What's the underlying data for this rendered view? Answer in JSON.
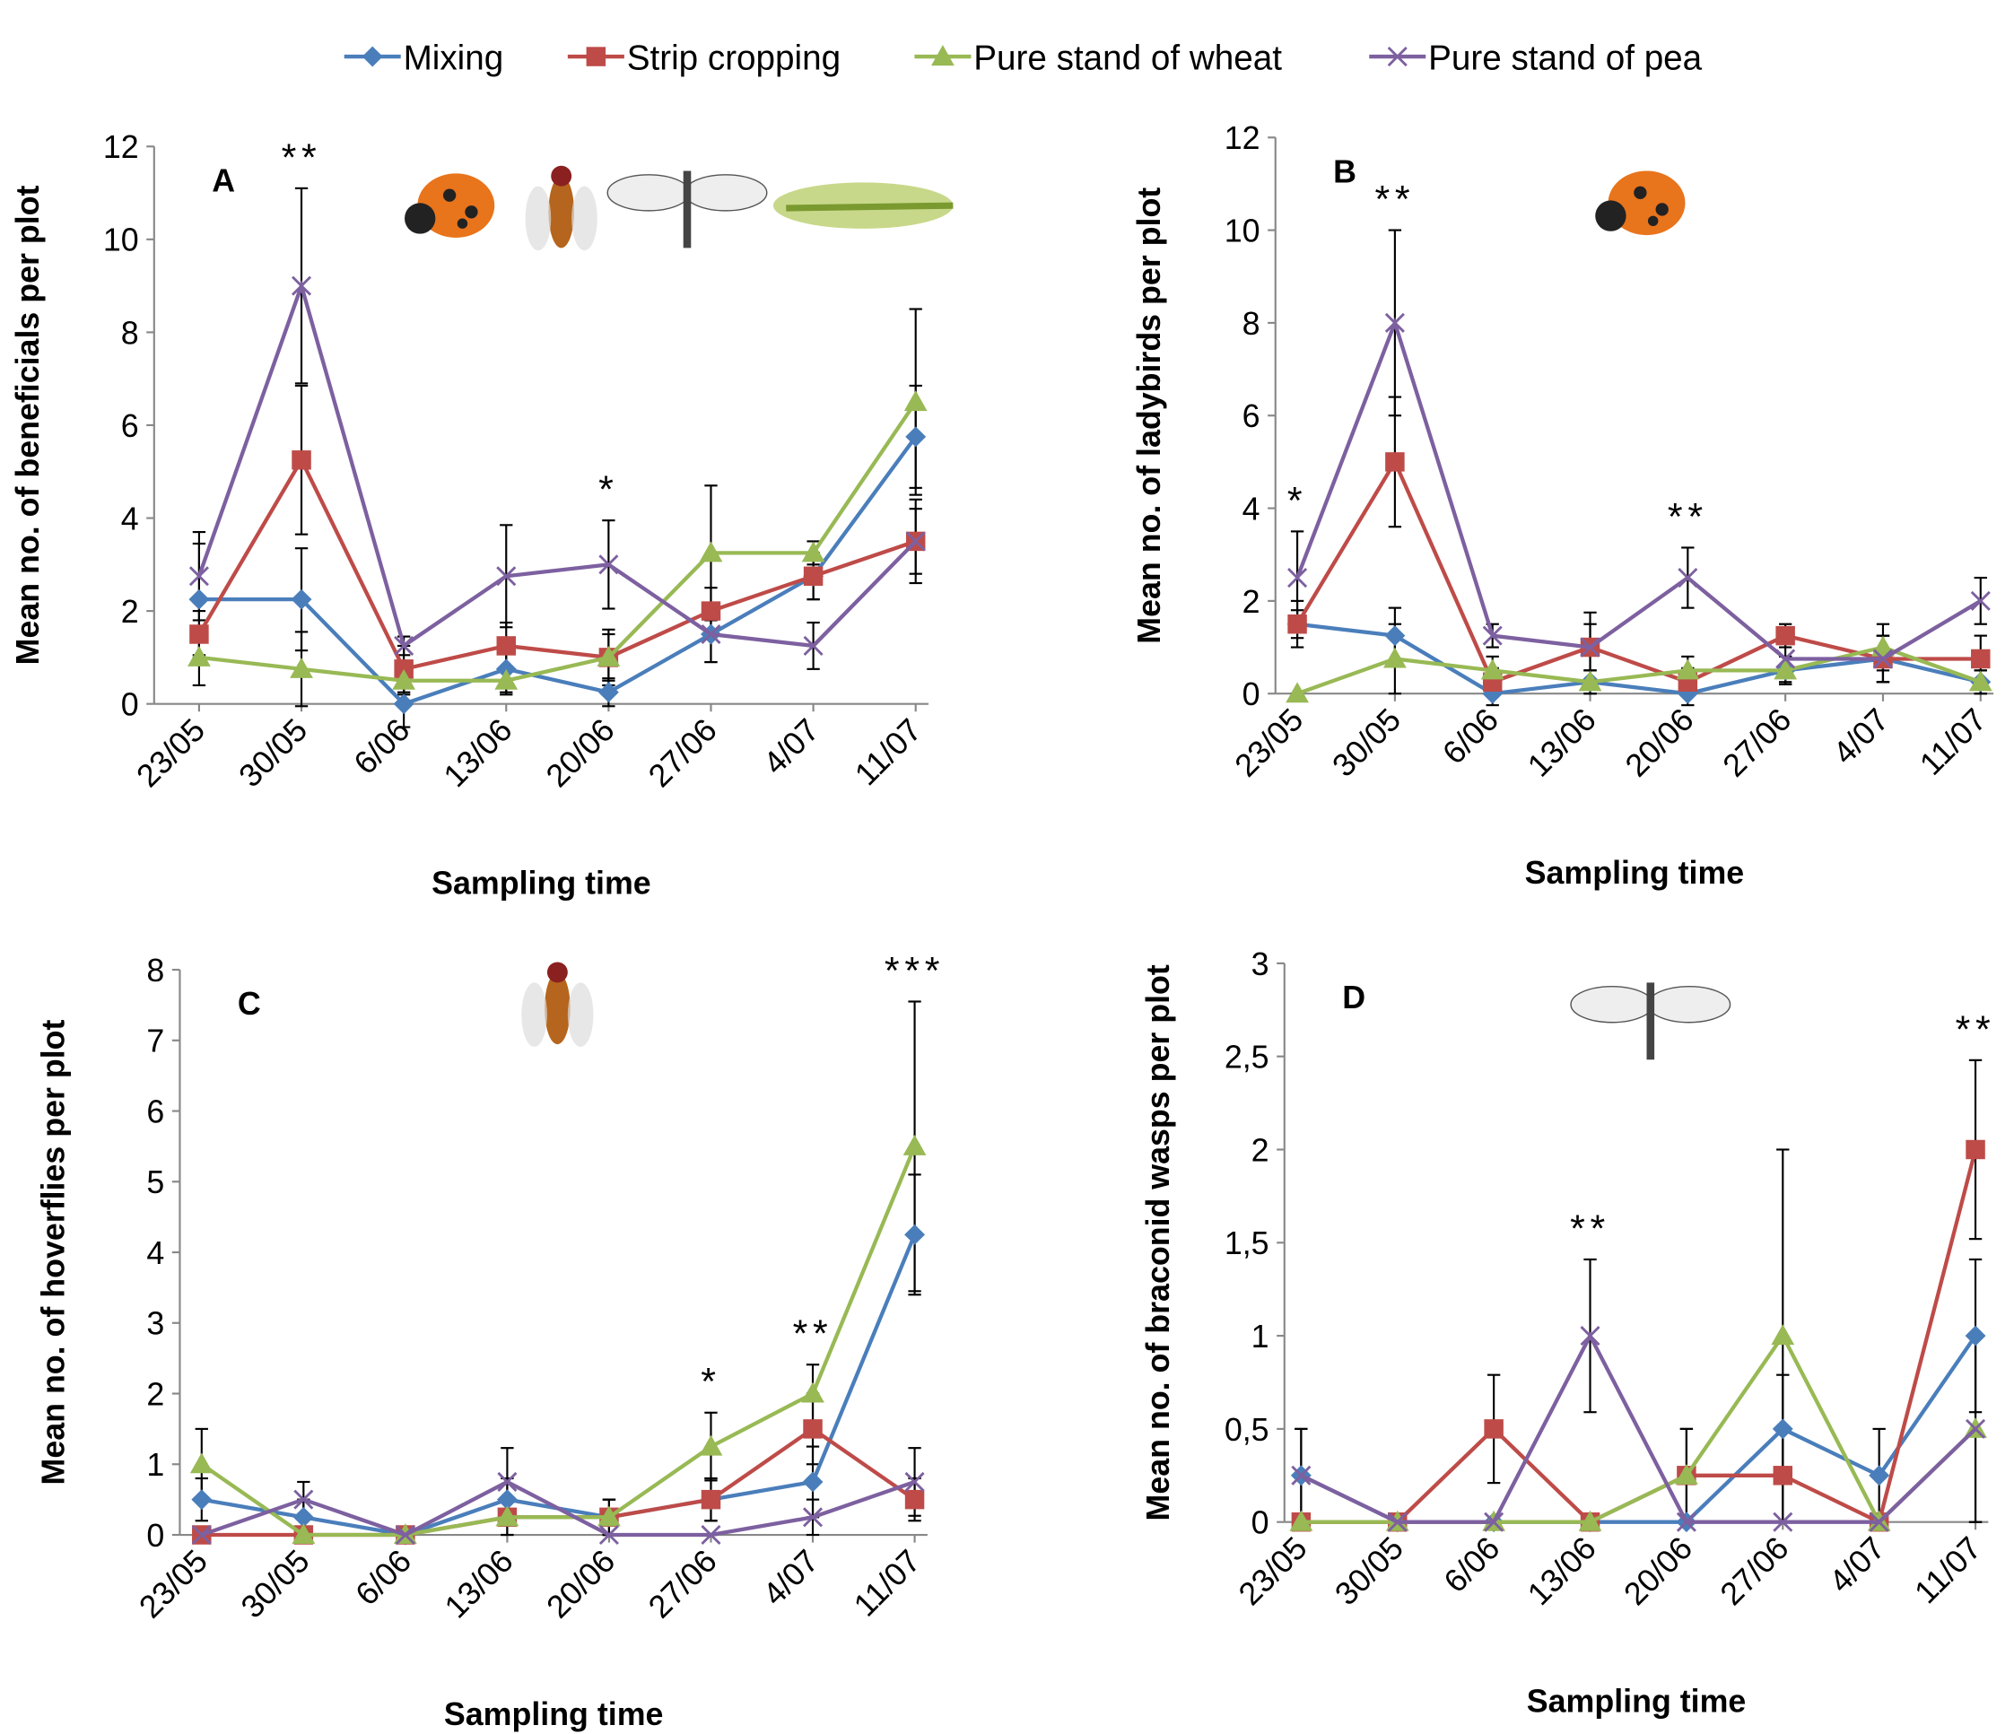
{
  "chart_data": [
    {
      "type": "line",
      "panel_label": "A",
      "y_label": "Mean no. of beneficials per plot",
      "x_label": "Sampling time",
      "categories": [
        "23/05",
        "30/05",
        "6/06",
        "13/06",
        "20/06",
        "27/06",
        "4/07",
        "11/07"
      ],
      "ylim": [
        0,
        12
      ],
      "yticks": [
        0,
        2,
        4,
        6,
        8,
        10,
        12
      ],
      "series": [
        {
          "name": "Mixing",
          "color": "#4a7ebb",
          "marker": "diamond",
          "values": [
            2.25,
            2.25,
            0,
            0.75,
            0.25,
            1.5,
            2.75,
            5.75
          ],
          "errors": [
            1.2,
            1.1,
            0.5,
            0.5,
            0.3,
            0.6,
            0.5,
            1.1
          ]
        },
        {
          "name": "Strip cropping",
          "color": "#be4b48",
          "marker": "square",
          "values": [
            1.5,
            5.25,
            0.75,
            1.25,
            1,
            2,
            2.75,
            3.5
          ],
          "errors": [
            0.5,
            1.6,
            0.5,
            0.5,
            0.6,
            0.5,
            0.5,
            0.7
          ]
        },
        {
          "name": "Pure stand of wheat",
          "color": "#98b954",
          "marker": "triangle",
          "values": [
            1,
            0.75,
            0.5,
            0.5,
            1,
            3.25,
            3.25,
            6.5
          ],
          "errors": [
            0.6,
            0.8,
            0.3,
            0.3,
            0.5,
            1.45,
            0.25,
            2
          ]
        },
        {
          "name": "Pure stand of pea",
          "color": "#7d60a0",
          "marker": "x",
          "values": [
            2.75,
            9,
            1.25,
            2.75,
            3,
            1.5,
            1.25,
            3.5
          ],
          "errors": [
            0.95,
            2.1,
            0.2,
            1.1,
            0.95,
            0.6,
            0.5,
            0.9
          ]
        }
      ],
      "annotations": [
        {
          "text": "**",
          "category": "30/05"
        },
        {
          "text": "*",
          "category": "20/06"
        }
      ]
    },
    {
      "type": "line",
      "panel_label": "B",
      "y_label": "Mean no. of ladybirds per plot",
      "x_label": "Sampling time",
      "categories": [
        "23/05",
        "30/05",
        "6/06",
        "13/06",
        "20/06",
        "27/06",
        "4/07",
        "11/07"
      ],
      "ylim": [
        0,
        12
      ],
      "yticks": [
        0,
        2,
        4,
        6,
        8,
        10,
        12
      ],
      "series": [
        {
          "name": "Mixing",
          "color": "#4a7ebb",
          "marker": "diamond",
          "values": [
            1.5,
            1.25,
            0,
            0.25,
            0,
            0.5,
            0.75,
            0.25
          ],
          "errors": [
            0.3,
            0.6,
            0.25,
            0.25,
            0.25,
            0.3,
            0.5,
            0.25
          ]
        },
        {
          "name": "Strip cropping",
          "color": "#be4b48",
          "marker": "square",
          "values": [
            1.5,
            5,
            0.25,
            1,
            0.25,
            1.25,
            0.75,
            0.75
          ],
          "errors": [
            0.5,
            1.4,
            0.3,
            0.5,
            0.3,
            0.25,
            0.5,
            0.5
          ]
        },
        {
          "name": "Pure stand of wheat",
          "color": "#98b954",
          "marker": "triangle",
          "values": [
            0,
            0.75,
            0.5,
            0.25,
            0.5,
            0.5,
            1,
            0.25
          ],
          "errors": [
            0,
            0.75,
            0.3,
            0.25,
            0.3,
            0.3,
            0.5,
            0.25
          ]
        },
        {
          "name": "Pure stand of pea",
          "color": "#7d60a0",
          "marker": "x",
          "values": [
            2.5,
            8,
            1.25,
            1,
            2.5,
            0.75,
            0.75,
            2
          ],
          "errors": [
            1,
            2,
            0.25,
            0.75,
            0.65,
            0.5,
            0.5,
            0.5
          ]
        }
      ],
      "annotations": [
        {
          "text": "*",
          "category": "23/05"
        },
        {
          "text": "**",
          "category": "30/05"
        },
        {
          "text": "**",
          "category": "20/06"
        }
      ]
    },
    {
      "type": "line",
      "panel_label": "C",
      "y_label": "Mean no. of hoverflies per plot",
      "x_label": "Sampling time",
      "categories": [
        "23/05",
        "30/05",
        "6/06",
        "13/06",
        "20/06",
        "27/06",
        "4/07",
        "11/07"
      ],
      "ylim": [
        0,
        8
      ],
      "yticks": [
        0,
        1,
        2,
        3,
        4,
        5,
        6,
        7,
        8
      ],
      "series": [
        {
          "name": "Mixing",
          "color": "#4a7ebb",
          "marker": "diamond",
          "values": [
            0.5,
            0.25,
            0,
            0.5,
            0.25,
            0.5,
            0.75,
            4.25
          ],
          "errors": [
            0.3,
            0.25,
            0,
            0.3,
            0.25,
            0.3,
            0.5,
            0.85
          ]
        },
        {
          "name": "Strip cropping",
          "color": "#be4b48",
          "marker": "square",
          "values": [
            0,
            0,
            0,
            0.25,
            0.25,
            0.5,
            1.5,
            0.5
          ],
          "errors": [
            0,
            0,
            0,
            0.25,
            0.25,
            0.3,
            0.5,
            0.3
          ]
        },
        {
          "name": "Pure stand of wheat",
          "color": "#98b954",
          "marker": "triangle",
          "values": [
            1,
            0,
            0,
            0.25,
            0.25,
            1.25,
            2,
            5.5
          ],
          "errors": [
            0.5,
            0,
            0,
            0.25,
            0.25,
            0.48,
            0.41,
            2.05
          ]
        },
        {
          "name": "Pure stand of pea",
          "color": "#7d60a0",
          "marker": "x",
          "values": [
            0,
            0.5,
            0,
            0.75,
            0,
            0,
            0.25,
            0.75
          ],
          "errors": [
            0,
            0.25,
            0,
            0.48,
            0,
            0,
            0.25,
            0.48
          ]
        }
      ],
      "annotations": [
        {
          "text": "*",
          "category": "27/06"
        },
        {
          "text": "**",
          "category": "4/07"
        },
        {
          "text": "***",
          "category": "11/07"
        }
      ]
    },
    {
      "type": "line",
      "panel_label": "D",
      "y_label": "Mean no. of braconid wasps per plot",
      "x_label": "Sampling time",
      "categories": [
        "23/05",
        "30/05",
        "6/06",
        "13/06",
        "20/06",
        "27/06",
        "4/07",
        "11/07"
      ],
      "ylim": [
        0,
        3
      ],
      "yticks": [
        0,
        {
          "value": 0.5,
          "label": "0,5"
        },
        1,
        {
          "value": 1.5,
          "label": "1,5"
        },
        2,
        {
          "value": 2.5,
          "label": "2,5"
        },
        3
      ],
      "series": [
        {
          "name": "Mixing",
          "color": "#4a7ebb",
          "marker": "diamond",
          "values": [
            0.25,
            0,
            0,
            0,
            0,
            0.5,
            0.25,
            1
          ],
          "errors": [
            0.25,
            0,
            0,
            0,
            0,
            0.29,
            0.25,
            0.41
          ]
        },
        {
          "name": "Strip cropping",
          "color": "#be4b48",
          "marker": "square",
          "values": [
            0,
            0,
            0.5,
            0,
            0.25,
            0.25,
            0,
            2
          ],
          "errors": [
            0,
            0,
            0.29,
            0,
            0.25,
            0.25,
            0,
            0.48
          ]
        },
        {
          "name": "Pure stand of wheat",
          "color": "#98b954",
          "marker": "triangle",
          "values": [
            0,
            0,
            0,
            0,
            0.25,
            1,
            0,
            0.5
          ],
          "errors": [
            0,
            0,
            0,
            0,
            0.25,
            1,
            0,
            0.5
          ]
        },
        {
          "name": "Pure stand of pea",
          "color": "#7d60a0",
          "marker": "x",
          "values": [
            0.25,
            0,
            0,
            1,
            0,
            0,
            0,
            0.5
          ],
          "errors": [
            0.25,
            0,
            0,
            0.41,
            0,
            0,
            0,
            0.5
          ]
        }
      ],
      "annotations": [
        {
          "text": "**",
          "category": "13/06"
        },
        {
          "text": "**",
          "category": "11/07"
        }
      ]
    }
  ]
}
